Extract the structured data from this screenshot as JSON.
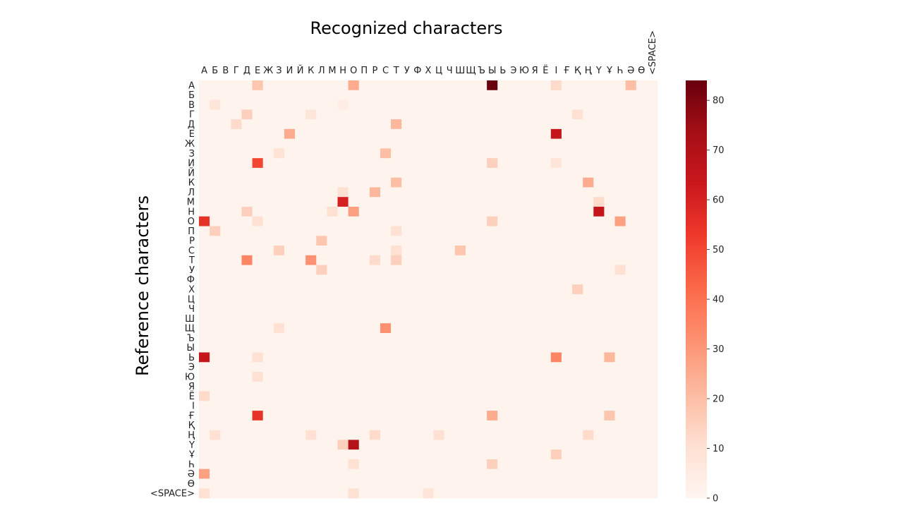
{
  "chart_data": {
    "type": "heatmap",
    "title": "Recognized characters",
    "xlabel": "Recognized characters",
    "ylabel": "Reference characters",
    "labels": [
      "А",
      "Б",
      "В",
      "Г",
      "Д",
      "Е",
      "Ж",
      "З",
      "И",
      "Й",
      "К",
      "Л",
      "М",
      "Н",
      "О",
      "П",
      "Р",
      "С",
      "Т",
      "У",
      "Ф",
      "Х",
      "Ц",
      "Ч",
      "Ш",
      "Щ",
      "Ъ",
      "Ы",
      "Ь",
      "Э",
      "Ю",
      "Я",
      "Ё",
      "І",
      "Ғ",
      "Қ",
      "Ң",
      "Ү",
      "Ұ",
      "Һ",
      "Ә",
      "Ө",
      "<SPACE>"
    ],
    "colorbar": {
      "min": 0,
      "max": 84,
      "ticks": [
        0,
        10,
        20,
        30,
        40,
        50,
        60,
        70,
        80
      ],
      "colormap": "Reds"
    },
    "background_value": 1,
    "cells": [
      [
        0,
        5,
        18
      ],
      [
        0,
        14,
        25
      ],
      [
        0,
        27,
        84
      ],
      [
        0,
        33,
        12
      ],
      [
        0,
        40,
        20
      ],
      [
        2,
        1,
        8
      ],
      [
        2,
        13,
        4
      ],
      [
        3,
        4,
        15
      ],
      [
        3,
        10,
        8
      ],
      [
        3,
        35,
        10
      ],
      [
        4,
        3,
        12
      ],
      [
        4,
        18,
        22
      ],
      [
        5,
        8,
        25
      ],
      [
        5,
        33,
        65
      ],
      [
        7,
        17,
        20
      ],
      [
        7,
        7,
        9
      ],
      [
        8,
        5,
        50
      ],
      [
        8,
        27,
        15
      ],
      [
        8,
        33,
        8
      ],
      [
        10,
        18,
        20
      ],
      [
        10,
        36,
        25
      ],
      [
        11,
        16,
        22
      ],
      [
        11,
        13,
        10
      ],
      [
        12,
        13,
        60
      ],
      [
        12,
        37,
        12
      ],
      [
        13,
        4,
        15
      ],
      [
        13,
        12,
        10
      ],
      [
        13,
        14,
        28
      ],
      [
        13,
        37,
        65
      ],
      [
        14,
        0,
        55
      ],
      [
        14,
        5,
        10
      ],
      [
        14,
        27,
        15
      ],
      [
        14,
        39,
        28
      ],
      [
        15,
        1,
        15
      ],
      [
        15,
        18,
        10
      ],
      [
        16,
        11,
        18
      ],
      [
        17,
        7,
        15
      ],
      [
        17,
        18,
        10
      ],
      [
        17,
        24,
        18
      ],
      [
        18,
        4,
        35
      ],
      [
        18,
        10,
        32
      ],
      [
        18,
        16,
        12
      ],
      [
        18,
        18,
        15
      ],
      [
        19,
        11,
        15
      ],
      [
        19,
        39,
        10
      ],
      [
        21,
        35,
        15
      ],
      [
        25,
        17,
        32
      ],
      [
        25,
        7,
        10
      ],
      [
        28,
        0,
        65
      ],
      [
        28,
        5,
        10
      ],
      [
        28,
        33,
        35
      ],
      [
        28,
        38,
        22
      ],
      [
        30,
        5,
        10
      ],
      [
        32,
        0,
        12
      ],
      [
        34,
        5,
        55
      ],
      [
        34,
        27,
        25
      ],
      [
        34,
        38,
        18
      ],
      [
        36,
        1,
        10
      ],
      [
        36,
        10,
        10
      ],
      [
        36,
        16,
        12
      ],
      [
        36,
        22,
        10
      ],
      [
        36,
        36,
        12
      ],
      [
        37,
        13,
        15
      ],
      [
        37,
        14,
        70
      ],
      [
        38,
        33,
        15
      ],
      [
        39,
        14,
        10
      ],
      [
        39,
        27,
        15
      ],
      [
        40,
        0,
        28
      ],
      [
        42,
        0,
        10
      ],
      [
        42,
        14,
        10
      ],
      [
        42,
        21,
        8
      ]
    ]
  }
}
